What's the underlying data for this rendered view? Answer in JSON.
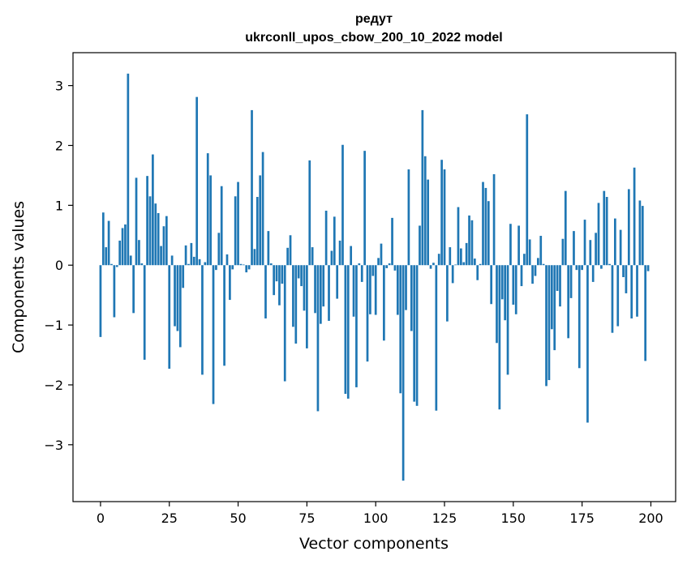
{
  "chart_data": {
    "type": "bar",
    "title": "редут",
    "subtitle": "ukrconll_upos_cbow_200_10_2022 model",
    "xlabel": "Vector components",
    "ylabel": "Components values",
    "xlim": [
      -10,
      209
    ],
    "ylim": [
      -3.95,
      3.55
    ],
    "xticks": [
      0,
      25,
      50,
      75,
      100,
      125,
      150,
      175,
      200
    ],
    "yticks": [
      -3,
      -2,
      -1,
      0,
      1,
      2,
      3
    ],
    "grid": false,
    "bar_color": "#1f77b4",
    "x": [
      0,
      1,
      2,
      3,
      4,
      5,
      6,
      7,
      8,
      9,
      10,
      11,
      12,
      13,
      14,
      15,
      16,
      17,
      18,
      19,
      20,
      21,
      22,
      23,
      24,
      25,
      26,
      27,
      28,
      29,
      30,
      31,
      32,
      33,
      34,
      35,
      36,
      37,
      38,
      39,
      40,
      41,
      42,
      43,
      44,
      45,
      46,
      47,
      48,
      49,
      50,
      51,
      52,
      53,
      54,
      55,
      56,
      57,
      58,
      59,
      60,
      61,
      62,
      63,
      64,
      65,
      66,
      67,
      68,
      69,
      70,
      71,
      72,
      73,
      74,
      75,
      76,
      77,
      78,
      79,
      80,
      81,
      82,
      83,
      84,
      85,
      86,
      87,
      88,
      89,
      90,
      91,
      92,
      93,
      94,
      95,
      96,
      97,
      98,
      99,
      100,
      101,
      102,
      103,
      104,
      105,
      106,
      107,
      108,
      109,
      110,
      111,
      112,
      113,
      114,
      115,
      116,
      117,
      118,
      119,
      120,
      121,
      122,
      123,
      124,
      125,
      126,
      127,
      128,
      129,
      130,
      131,
      132,
      133,
      134,
      135,
      136,
      137,
      138,
      139,
      140,
      141,
      142,
      143,
      144,
      145,
      146,
      147,
      148,
      149,
      150,
      151,
      152,
      153,
      154,
      155,
      156,
      157,
      158,
      159,
      160,
      161,
      162,
      163,
      164,
      165,
      166,
      167,
      168,
      169,
      170,
      171,
      172,
      173,
      174,
      175,
      176,
      177,
      178,
      179,
      180,
      181,
      182,
      183,
      184,
      185,
      186,
      187,
      188,
      189,
      190,
      191,
      192,
      193,
      194,
      195,
      196,
      197,
      198,
      199
    ],
    "values": [
      -1.2,
      0.88,
      0.3,
      0.74,
      0.02,
      -0.87,
      -0.03,
      0.41,
      0.62,
      0.68,
      3.2,
      0.16,
      -0.8,
      1.46,
      0.42,
      0.03,
      -1.58,
      1.49,
      1.15,
      1.85,
      1.03,
      0.87,
      0.32,
      0.65,
      0.82,
      -1.73,
      0.16,
      -1.02,
      -1.1,
      -1.37,
      -0.38,
      0.33,
      0.02,
      0.37,
      0.14,
      2.81,
      0.1,
      -1.83,
      0.05,
      1.87,
      1.5,
      -2.32,
      -0.08,
      0.54,
      1.32,
      -1.68,
      0.18,
      -0.58,
      -0.07,
      1.15,
      1.39,
      0.02,
      0.01,
      -0.12,
      -0.07,
      2.59,
      0.27,
      1.14,
      1.5,
      1.89,
      -0.89,
      0.57,
      0.03,
      -0.5,
      -0.27,
      -0.67,
      -0.31,
      -1.94,
      0.29,
      0.5,
      -1.03,
      -1.31,
      -0.22,
      -0.35,
      -0.76,
      -1.39,
      1.75,
      0.3,
      -0.8,
      -2.44,
      -0.98,
      -0.69,
      0.91,
      -0.93,
      0.24,
      0.81,
      -0.56,
      0.41,
      2.01,
      -2.15,
      -2.23,
      0.32,
      -0.86,
      -2.04,
      0.03,
      -0.28,
      1.91,
      -1.61,
      -0.82,
      -0.18,
      -0.83,
      0.12,
      0.36,
      -1.26,
      -0.05,
      0.03,
      0.79,
      -0.09,
      -0.83,
      -2.14,
      -3.6,
      -0.75,
      1.6,
      -1.1,
      -2.28,
      -2.35,
      0.66,
      2.59,
      1.82,
      1.43,
      -0.06,
      0.04,
      -2.43,
      0.19,
      1.76,
      1.6,
      -0.94,
      0.3,
      -0.3,
      0.01,
      0.97,
      0.28,
      0.05,
      0.37,
      0.83,
      0.75,
      0.11,
      -0.25,
      0.02,
      1.39,
      1.29,
      1.07,
      -0.65,
      1.52,
      -1.3,
      -2.41,
      -0.57,
      -0.92,
      -1.83,
      0.69,
      -0.66,
      -0.82,
      0.66,
      -0.35,
      0.19,
      2.52,
      0.43,
      -0.31,
      -0.18,
      0.12,
      0.49,
      0.02,
      -2.02,
      -1.92,
      -1.07,
      -1.42,
      -0.43,
      -0.69,
      0.44,
      1.24,
      -1.22,
      -0.55,
      0.57,
      -0.08,
      -1.72,
      -0.08,
      0.76,
      -2.63,
      0.42,
      -0.28,
      0.54,
      1.04,
      -0.06,
      1.24,
      1.14,
      0.02,
      -1.13,
      0.78,
      -1.02,
      0.59,
      -0.2,
      -0.47,
      1.27,
      -0.89,
      1.63,
      -0.86,
      1.08,
      0.99,
      -1.6,
      -0.1
    ]
  }
}
